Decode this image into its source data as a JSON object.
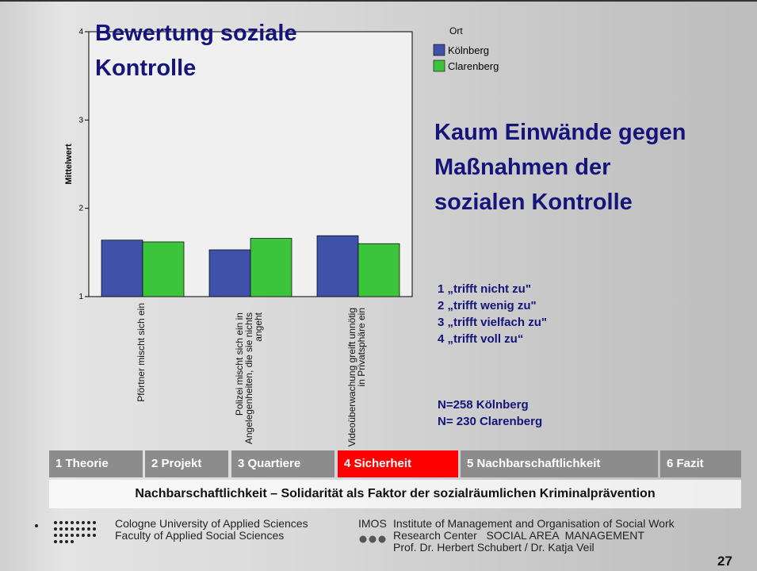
{
  "chart_data": {
    "type": "bar",
    "title": "Bewertung soziale Kontrolle",
    "y_label": "Mittelwert",
    "categories": [
      "Pförtner mischt sich ein",
      "Polizei mischt sich ein in Angelegenheiten, die sie nichts angeht",
      "Videoüberwachung greift unnötig in Privatsphäre ein"
    ],
    "legend_title": "Ort",
    "series": [
      {
        "name": "Kölnberg",
        "color": "#3f51a8",
        "values": [
          1.64,
          1.53,
          1.69
        ]
      },
      {
        "name": "Clarenberg",
        "color": "#3dc43d",
        "values": [
          1.62,
          1.66,
          1.6
        ]
      }
    ],
    "ylim": [
      1,
      4
    ],
    "yticks": [
      1,
      2,
      3,
      4
    ]
  },
  "slide": {
    "headline": "Kaum Einwände gegen Maßnahmen der sozialen Kontrolle",
    "scale": [
      "1 „trifft nicht zu\"",
      "2 „trifft wenig zu\"",
      "3 „trifft vielfach zu\"",
      "4 „trifft voll zu“"
    ],
    "sample": [
      "N=258 Kölnberg",
      "N= 230 Clarenberg"
    ],
    "nav": [
      {
        "label": "1 Theorie",
        "color": "#8c8c8c"
      },
      {
        "label": "2 Projekt",
        "color": "#8c8c8c"
      },
      {
        "label": "3 Quartiere",
        "color": "#8c8c8c"
      },
      {
        "label": "4 Sicherheit",
        "color": "#ff0000"
      },
      {
        "label": "5 Nachbarschaftlichkeit",
        "color": "#8c8c8c"
      },
      {
        "label": "6 Fazit",
        "color": "#8c8c8c"
      }
    ],
    "subtitle": "Nachbarschaftlichkeit – Solidarität als Faktor der sozialräumlichen Kriminalprävention",
    "footer": {
      "left": [
        "Cologne University of Applied Sciences",
        "Faculty of Applied Social Sciences"
      ],
      "imos": "IMOS",
      "right": [
        "Institute of Management and Organisation of Social Work",
        "Research Center   SOCIAL AREA  MANAGEMENT",
        "Prof. Dr. Herbert Schubert / Dr. Katja Veil"
      ],
      "page": "27"
    }
  }
}
